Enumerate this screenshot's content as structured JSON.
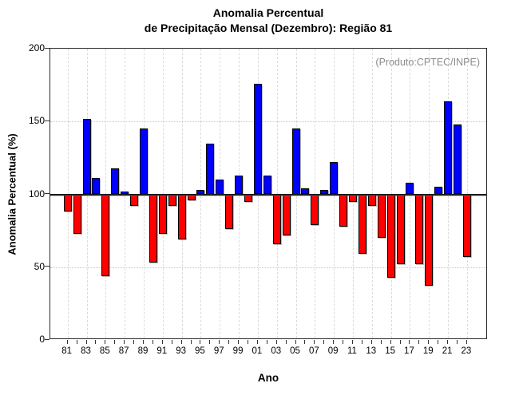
{
  "title": {
    "line1": "Anomalia Percentual",
    "line2": "de Precipitação Mensal (Dezembro): Região 81"
  },
  "annotation": "(Produto:CPTEC/INPE)",
  "colors": {
    "above_normal": "#0000ff",
    "below_normal": "#ff0000",
    "baseline": "#1a1a1a",
    "annotation_text": "#8c8c8c"
  },
  "chart_data": {
    "type": "bar",
    "title": "Anomalia Percentual de Precipitação Mensal (Dezembro): Região 81",
    "xlabel": "Ano",
    "ylabel": "Anomalia Percentual (%)",
    "ylim": [
      0,
      200
    ],
    "yticks": [
      0,
      50,
      100,
      150,
      200
    ],
    "baseline_value": 100,
    "grid": "horizontal dotted at 50 and 150, vertical dashed at labeled years",
    "legend": "none",
    "color_rule": "blue above 100, red below 100",
    "categories": [
      1981,
      1982,
      1983,
      1984,
      1985,
      1986,
      1987,
      1988,
      1989,
      1990,
      1991,
      1992,
      1993,
      1994,
      1995,
      1996,
      1997,
      1998,
      1999,
      2000,
      2001,
      2002,
      2003,
      2004,
      2005,
      2006,
      2007,
      2008,
      2009,
      2010,
      2011,
      2012,
      2013,
      2014,
      2015,
      2016,
      2017,
      2018,
      2019,
      2020,
      2021,
      2022,
      2023
    ],
    "x_tick_labels": [
      "81",
      "83",
      "85",
      "87",
      "89",
      "91",
      "93",
      "95",
      "97",
      "99",
      "01",
      "03",
      "05",
      "07",
      "09",
      "11",
      "13",
      "15",
      "17",
      "19",
      "21",
      "23"
    ],
    "values": [
      88,
      73,
      152,
      111,
      44,
      118,
      102,
      92,
      145,
      53,
      73,
      92,
      69,
      96,
      103,
      135,
      110,
      76,
      113,
      95,
      176,
      113,
      66,
      72,
      145,
      104,
      79,
      103,
      122,
      78,
      95,
      59,
      92,
      70,
      43,
      52,
      108,
      52,
      37,
      105,
      164,
      148,
      57
    ]
  }
}
